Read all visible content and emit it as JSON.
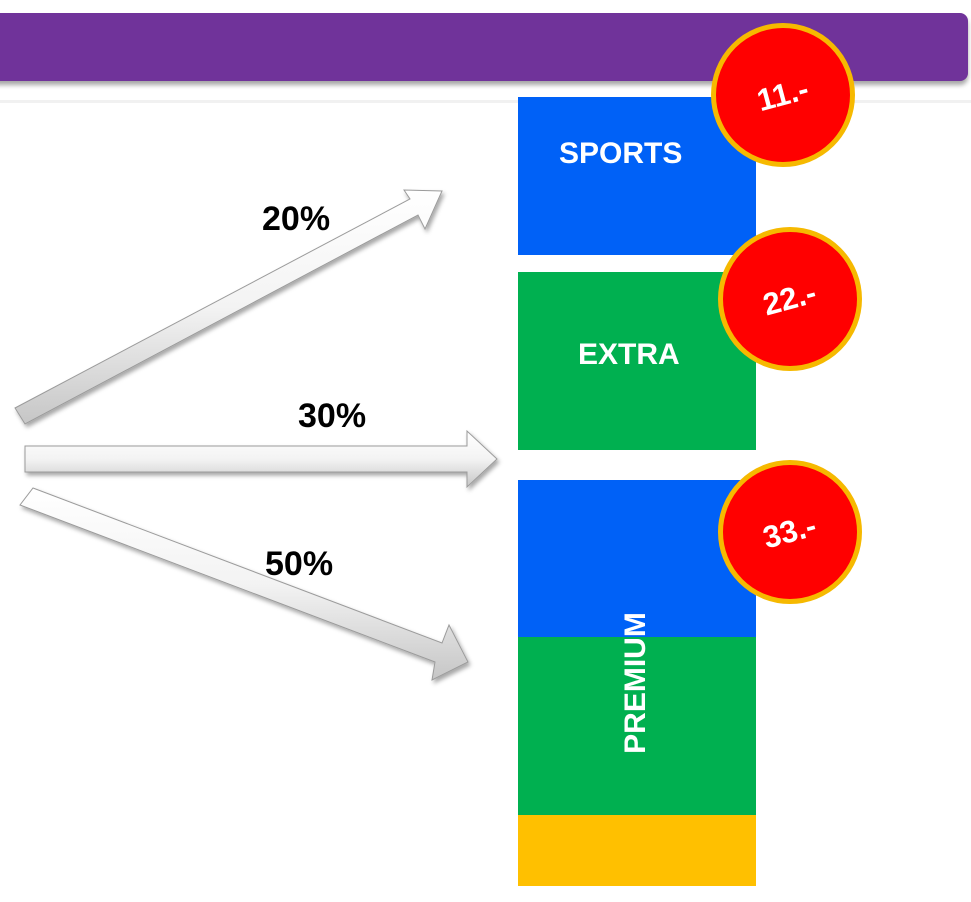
{
  "arrows": [
    {
      "label": "20%"
    },
    {
      "label": "30%"
    },
    {
      "label": "50%"
    }
  ],
  "packages": [
    {
      "name": "SPORTS",
      "price": "11.-",
      "color": "#0061f7"
    },
    {
      "name": "EXTRA",
      "price": "22.-",
      "color": "#00b050"
    },
    {
      "name": "PREMIUM",
      "price": "33.-",
      "colors": [
        "#0061f7",
        "#00b050",
        "#ffc000"
      ]
    }
  ],
  "colors": {
    "header": "#70339a",
    "badge": "#ff0000",
    "badge_border": "#f6b900"
  }
}
